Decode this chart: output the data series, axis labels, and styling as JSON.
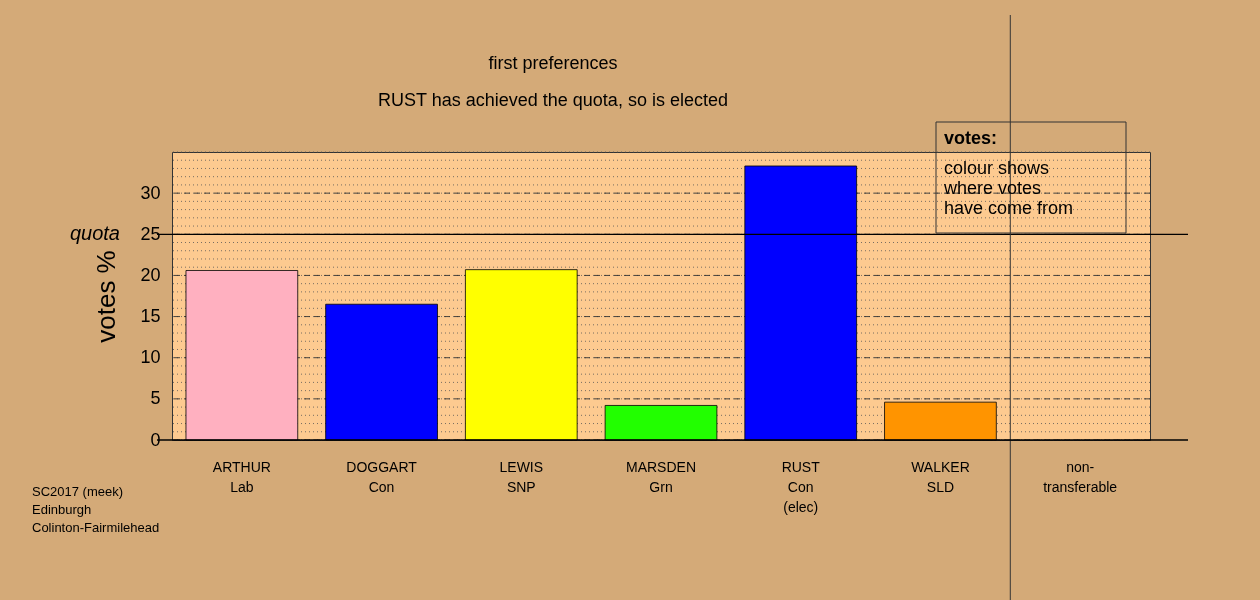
{
  "chart_data": {
    "type": "bar",
    "title": "first preferences",
    "subtitle": "RUST has achieved the quota, so is elected",
    "ylabel": "votes %",
    "categories": [
      "ARTHUR\nLab",
      "DOGGART\nCon",
      "LEWIS\nSNP",
      "MARSDEN\nGrn",
      "RUST\nCon\n(elec)",
      "WALKER\nSLD",
      "non-\ntransferable"
    ],
    "values": [
      20.6,
      16.5,
      20.7,
      4.2,
      33.3,
      4.6,
      null
    ],
    "colors": [
      "#ffb0c0",
      "#0000ff",
      "#ffff00",
      "#22ff00",
      "#0000ff",
      "#ff9400",
      "#888888"
    ],
    "ylim": [
      0,
      35
    ],
    "yticks": [
      0,
      5,
      10,
      15,
      20,
      25,
      30
    ],
    "grid": "y",
    "ref_lines": [
      {
        "axis": "y",
        "value": 25,
        "label": "quota"
      },
      {
        "axis": "x",
        "value": "non-\ntransferable",
        "label": null
      }
    ],
    "annotations": [
      "votes:",
      "colour shows\nwhere votes\nhave come from",
      "SC2017 (meek)\nEdinburgh\nColinton-Fairmilehead"
    ]
  }
}
